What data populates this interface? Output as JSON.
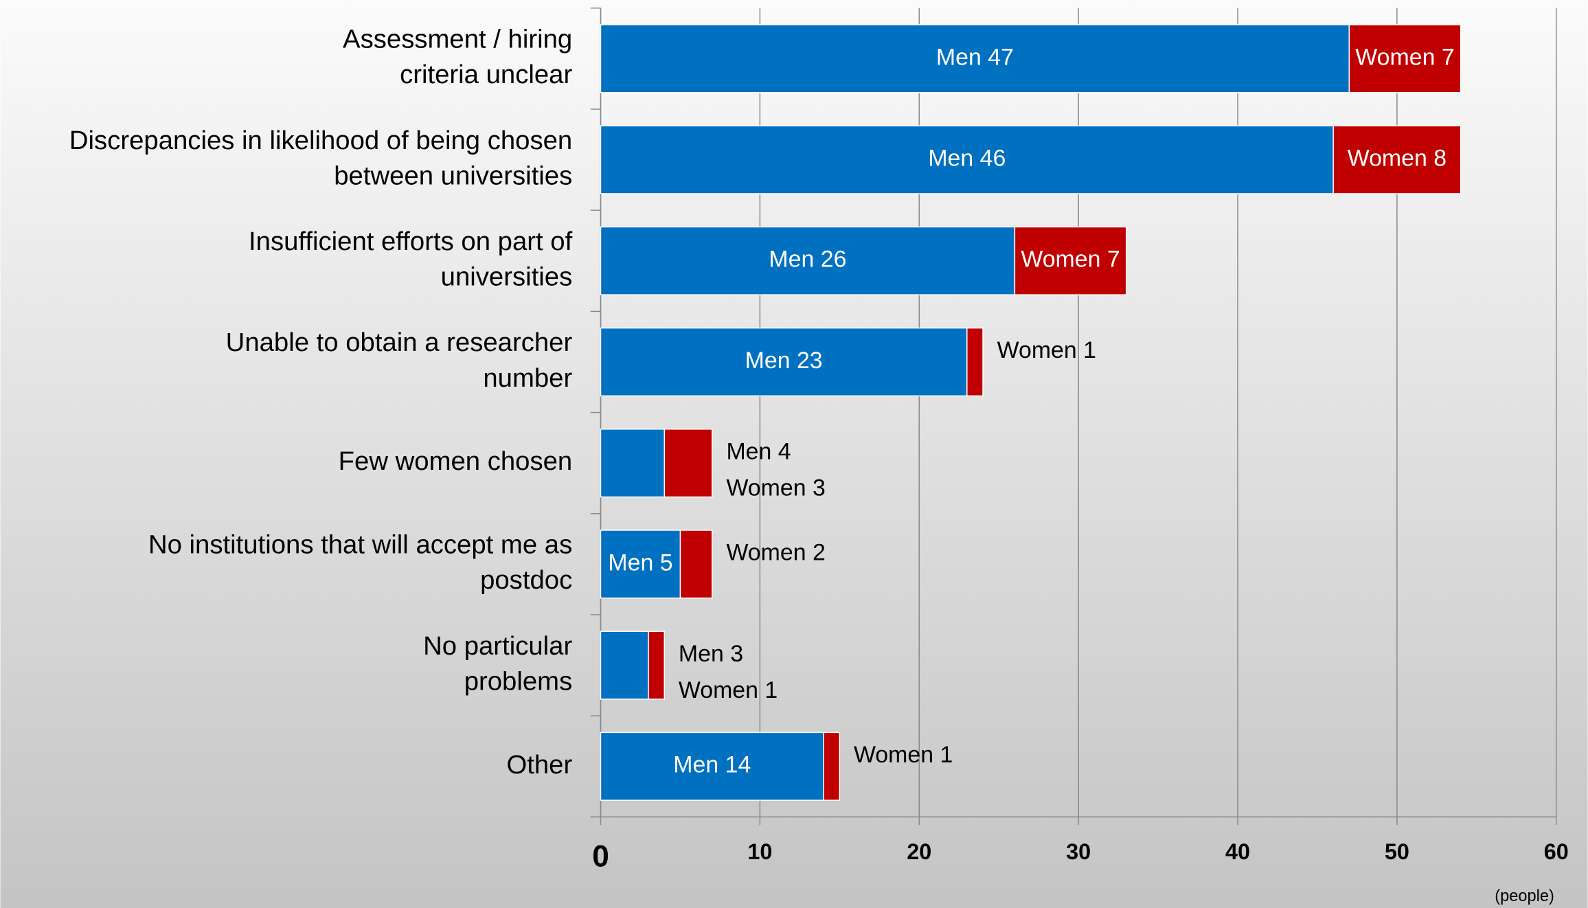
{
  "chart_data": {
    "type": "stacked-bar-horizontal",
    "categories": [
      "Assessment / hiring\ncriteria unclear",
      "Discrepancies in likelihood of being chosen\nbetween universities",
      "Insufficient efforts on part of\nuniversities",
      "Unable to obtain a researcher\nnumber",
      "Few women chosen",
      "No institutions that will accept me as\npostdoc",
      "No particular\nproblems",
      "Other"
    ],
    "series": [
      {
        "name": "Men",
        "color": "#0070c0",
        "values": [
          47,
          46,
          26,
          23,
          4,
          5,
          3,
          14
        ],
        "value_labels": [
          "Men 47",
          "Men 46",
          "Men 26",
          "Men 23",
          "Men 4",
          "Men 5",
          "Men 3",
          "Men 14"
        ]
      },
      {
        "name": "Women",
        "color": "#c00000",
        "values": [
          7,
          8,
          7,
          1,
          3,
          2,
          1,
          1
        ],
        "value_labels": [
          "Women 7",
          "Women 8",
          "Women 7",
          "Women 1",
          "Women 3",
          "Women 2",
          "Women 1",
          "Women 1"
        ]
      }
    ],
    "xlim": [
      0,
      60
    ],
    "xticks": [
      0,
      10,
      20,
      30,
      40,
      50,
      60
    ],
    "grid": true,
    "x_label": "(people)"
  }
}
